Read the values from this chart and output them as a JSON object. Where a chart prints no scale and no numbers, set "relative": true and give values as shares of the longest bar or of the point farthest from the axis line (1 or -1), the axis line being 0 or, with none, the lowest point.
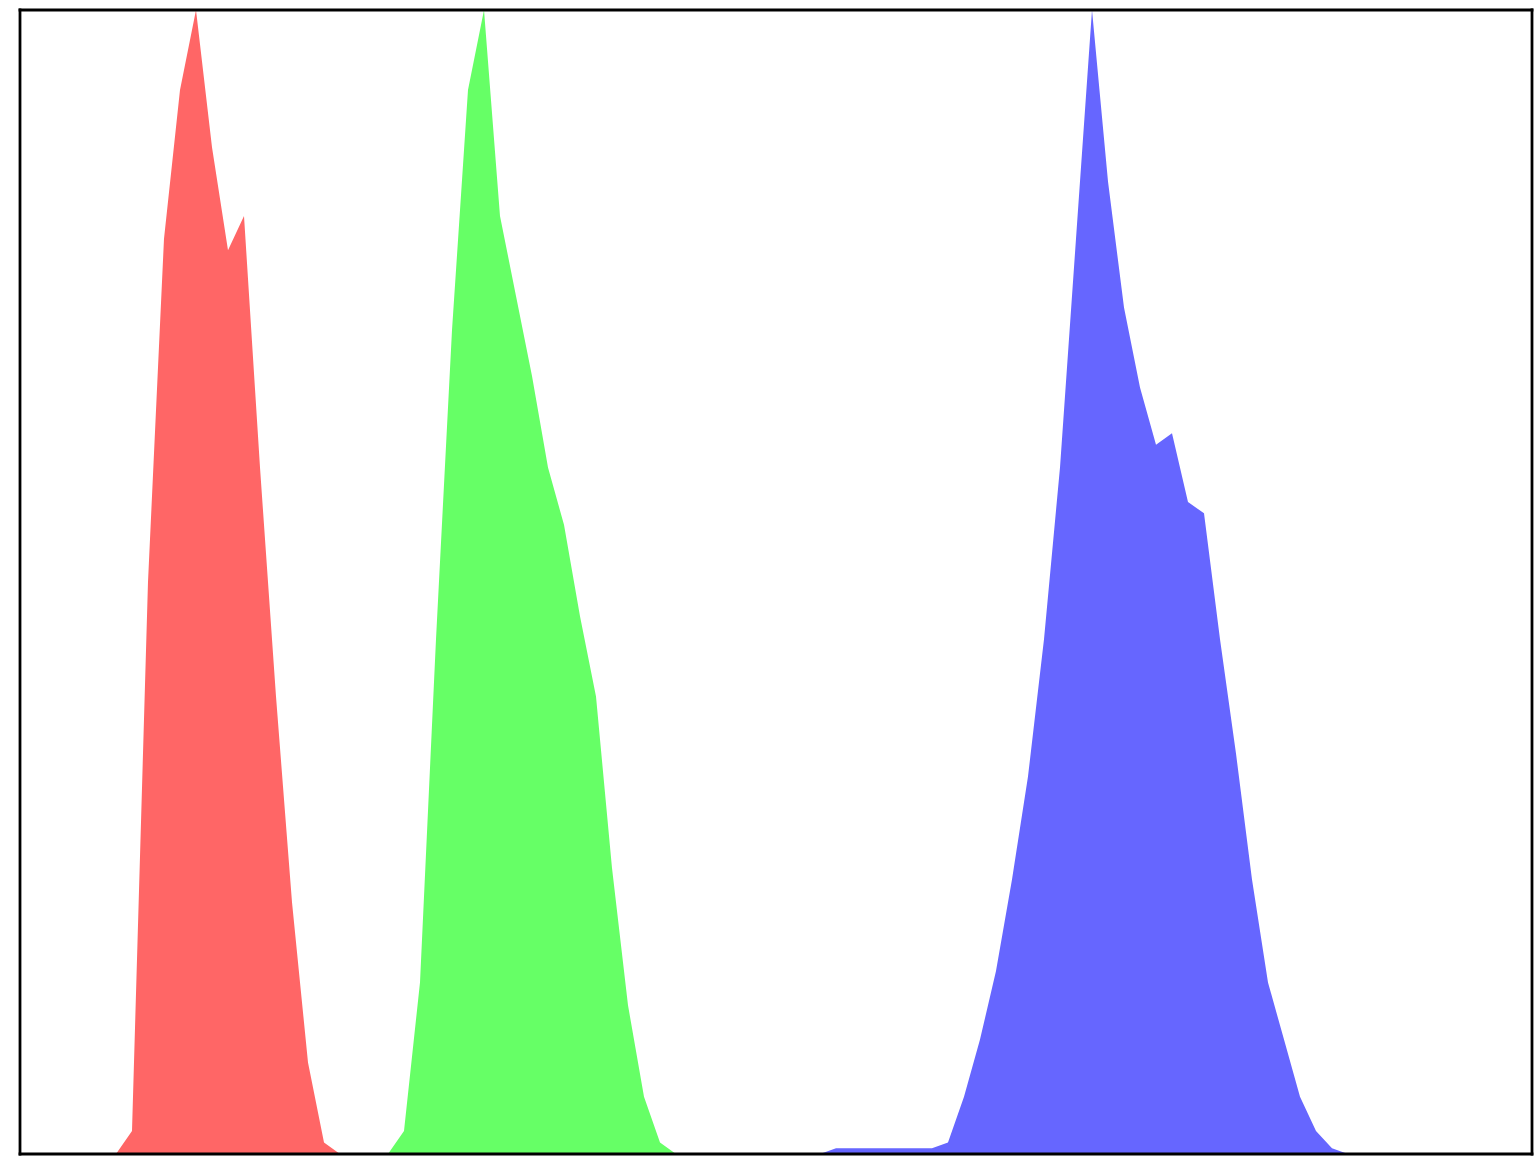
{
  "chart_data": {
    "type": "area",
    "relative": true,
    "grid": false,
    "categories": [
      null,
      null,
      null,
      null,
      null,
      null,
      null,
      null,
      null,
      null,
      null,
      null,
      null,
      null,
      null,
      null,
      null,
      null,
      null,
      null,
      null,
      null,
      null,
      null,
      null,
      null,
      null,
      null,
      null,
      null,
      null,
      null,
      null,
      null,
      null,
      null,
      null,
      null,
      null,
      null,
      null,
      null,
      null,
      null,
      null,
      null,
      null,
      null,
      null,
      null,
      null,
      null,
      null,
      null,
      null,
      null,
      null,
      null,
      null,
      null,
      null,
      null,
      null,
      null,
      null,
      null,
      null,
      null,
      null,
      null,
      null,
      null,
      null,
      null,
      null,
      null,
      null,
      null,
      null,
      null,
      null,
      null,
      null,
      null,
      null,
      null,
      null,
      null,
      null,
      null,
      null,
      null,
      null,
      null,
      null
    ],
    "series": [
      {
        "color": "#ff6666",
        "values": [
          null,
          null,
          null,
          null,
          null,
          null,
          0,
          0.02,
          0.5,
          0.8,
          0.93,
          1.0,
          0.88,
          0.79,
          0.82,
          0.6,
          0.4,
          0.22,
          0.08,
          0.01,
          0,
          null,
          null,
          null,
          null,
          null,
          null,
          null,
          null,
          null,
          null,
          null,
          null,
          null,
          null,
          null,
          null,
          null,
          null,
          null,
          null,
          null,
          null,
          null,
          null,
          null,
          null,
          null,
          null,
          null,
          null,
          null,
          null,
          null,
          null,
          null,
          null,
          null,
          null,
          null,
          null,
          null,
          null,
          null,
          null,
          null,
          null,
          null,
          null,
          null,
          null,
          null,
          null,
          null,
          null,
          null,
          null,
          null,
          null,
          null,
          null,
          null,
          null,
          null,
          null,
          null,
          null,
          null,
          null,
          null,
          null,
          null,
          null,
          null,
          null
        ]
      },
      {
        "color": "#66ff66",
        "values": [
          null,
          null,
          null,
          null,
          null,
          null,
          null,
          null,
          null,
          null,
          null,
          null,
          null,
          null,
          null,
          null,
          null,
          null,
          null,
          null,
          null,
          null,
          null,
          0,
          0.02,
          0.15,
          0.45,
          0.72,
          0.93,
          1.0,
          0.82,
          0.75,
          0.68,
          0.6,
          0.55,
          0.47,
          0.4,
          0.25,
          0.13,
          0.05,
          0.01,
          0,
          null,
          null,
          null,
          null,
          null,
          null,
          null,
          null,
          null,
          null,
          null,
          null,
          null,
          null,
          null,
          null,
          null,
          null,
          null,
          null,
          null,
          null,
          null,
          null,
          null,
          null,
          null,
          null,
          null,
          null,
          null,
          null,
          null,
          null,
          null,
          null,
          null,
          null,
          null,
          null,
          null,
          null,
          null,
          null,
          null,
          null,
          null,
          null,
          null,
          null,
          null,
          null,
          null
        ]
      },
      {
        "color": "#6666ff",
        "values": [
          null,
          null,
          null,
          null,
          null,
          null,
          null,
          null,
          null,
          null,
          null,
          null,
          null,
          null,
          null,
          null,
          null,
          null,
          null,
          null,
          null,
          null,
          null,
          null,
          null,
          null,
          null,
          null,
          null,
          null,
          null,
          null,
          null,
          null,
          null,
          null,
          null,
          null,
          null,
          null,
          null,
          null,
          null,
          null,
          null,
          null,
          null,
          null,
          null,
          null,
          0,
          0.005,
          0.005,
          0.005,
          0.005,
          0.005,
          0.005,
          0.005,
          0.01,
          0.05,
          0.1,
          0.16,
          0.24,
          0.33,
          0.45,
          0.6,
          0.8,
          1.0,
          0.85,
          0.74,
          0.67,
          0.62,
          0.63,
          0.57,
          0.56,
          0.45,
          0.35,
          0.24,
          0.15,
          0.1,
          0.05,
          0.02,
          0.005,
          0,
          null,
          null,
          null,
          null,
          null,
          null,
          null,
          null,
          null,
          null,
          null
        ]
      }
    ]
  }
}
